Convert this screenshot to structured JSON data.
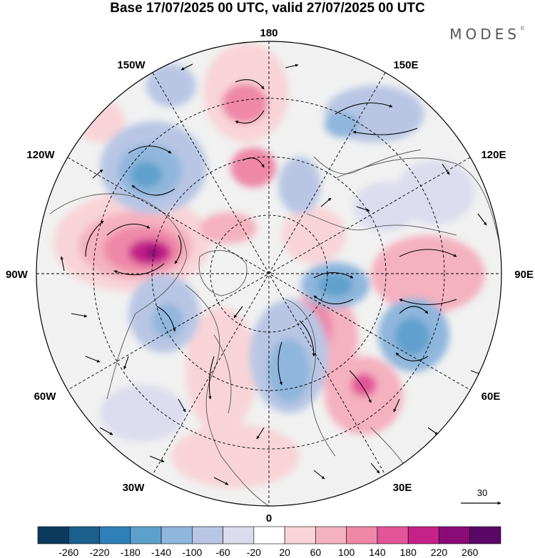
{
  "title": "Base 17/07/2025 00 UTC, valid 27/07/2025 00 UTC",
  "brand": "MODES",
  "brand_mark": "©",
  "longitude_labels": {
    "top": "180",
    "bottom": "0",
    "left": "90W",
    "right": "90E",
    "upper_left_1": "150W",
    "upper_left_2": "120W",
    "upper_right_1": "150E",
    "upper_right_2": "120E",
    "lower_left_1": "60W",
    "lower_left_2": "30W",
    "lower_right_1": "60E",
    "lower_right_2": "30E"
  },
  "reference_vector": {
    "label": "30"
  },
  "colorbar": {
    "labels": [
      "-260",
      "-220",
      "-180",
      "-140",
      "-100",
      "-60",
      "-20",
      "20",
      "60",
      "100",
      "140",
      "180",
      "220",
      "260"
    ],
    "colors": [
      "#0c3a5c",
      "#1b5f8d",
      "#2f80b8",
      "#5ea0cc",
      "#8fb6dc",
      "#b8c6e4",
      "#dcdcee",
      "#ffffff",
      "#f8d4d8",
      "#f4b1c0",
      "#ee87a8",
      "#e25598",
      "#c42288",
      "#8a0a78",
      "#5a0866"
    ]
  },
  "map": {
    "projection": "north-polar-stereographic",
    "pole": "North Pole",
    "anomaly_features": [
      {
        "type": "positive",
        "level": 260,
        "color": "#8a0a78"
      },
      {
        "type": "positive",
        "level": 140,
        "color": "#ee87a8"
      },
      {
        "type": "negative",
        "level": -140,
        "color": "#5ea0cc"
      },
      {
        "type": "negative",
        "level": -100,
        "color": "#8fb6dc"
      }
    ]
  }
}
